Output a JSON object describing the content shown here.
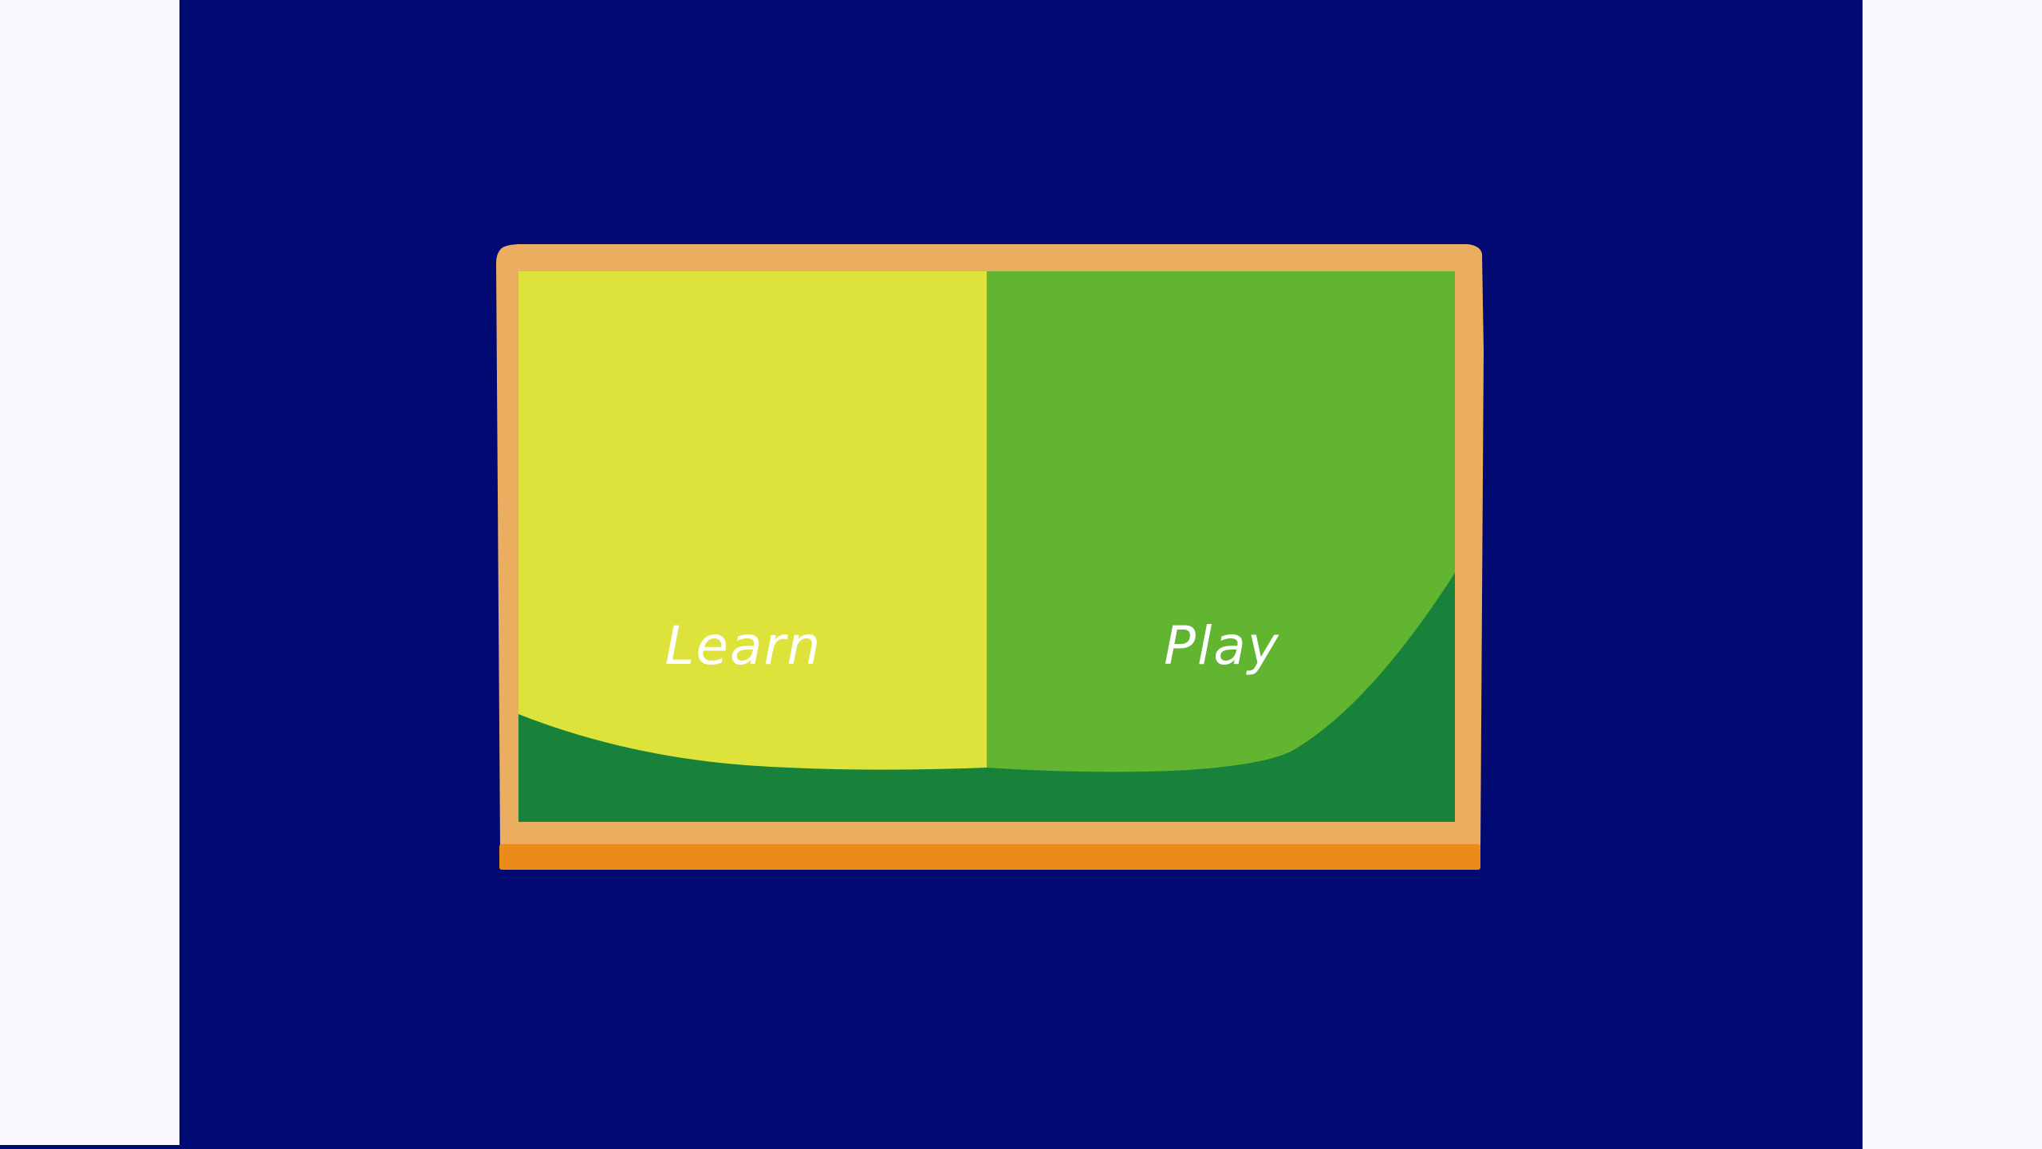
{
  "menu": {
    "learn_label": "Learn",
    "play_label": "Play"
  },
  "colors": {
    "background": "#000a72",
    "side_margin": "#f8f8fc",
    "frame": "#ebad5f",
    "frame_base": "#eb8b1a",
    "learn_panel": "#dde33b",
    "play_panel": "#62b531",
    "ground": "#18823a"
  }
}
